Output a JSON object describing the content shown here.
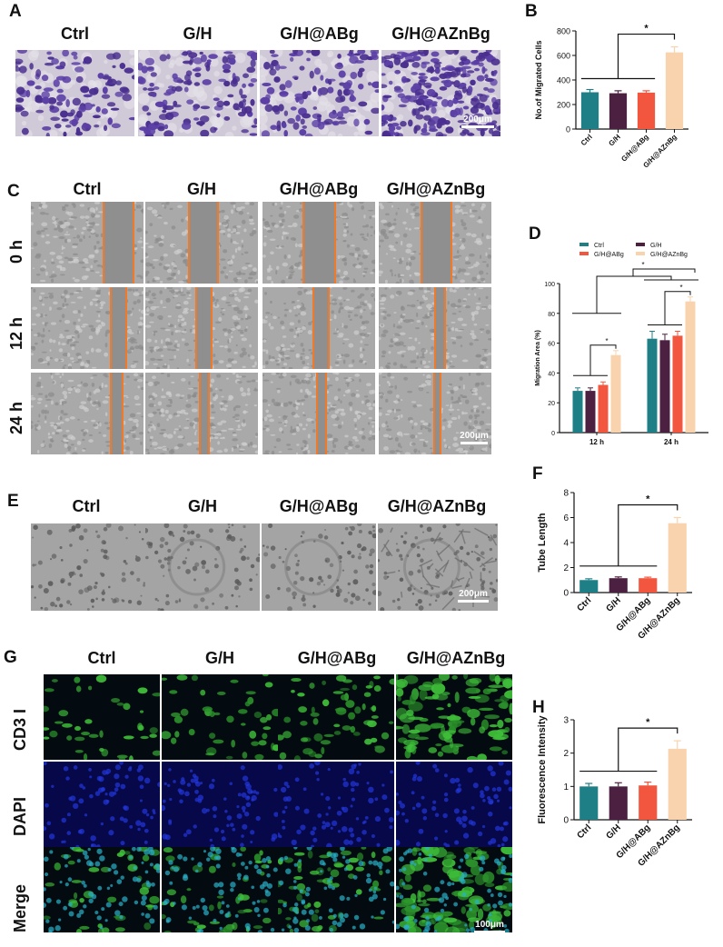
{
  "panels": {
    "A": {
      "letter": "A",
      "columns": [
        "Ctrl",
        "G/H",
        "G/H@ABg",
        "G/H@AZnBg"
      ],
      "scale_label": "200μm"
    },
    "C": {
      "letter": "C",
      "columns": [
        "Ctrl",
        "G/H",
        "G/H@ABg",
        "G/H@AZnBg"
      ],
      "rows": [
        "0 h",
        "12 h",
        "24 h"
      ],
      "scale_label": "200μm"
    },
    "E": {
      "letter": "E",
      "columns": [
        "Ctrl",
        "G/H",
        "G/H@ABg",
        "G/H@AZnBg"
      ],
      "scale_label": "200μm"
    },
    "G": {
      "letter": "G",
      "columns": [
        "Ctrl",
        "G/H",
        "G/H@ABg",
        "G/H@AZnBg"
      ],
      "rows": [
        "CD3 I",
        "DAPI",
        "Merge"
      ],
      "scale_label": "100μm"
    }
  },
  "colors": {
    "teal": "#1e7f86",
    "plum": "#4c2040",
    "coral": "#f2563e",
    "peach": "#f8d3ad",
    "crystal_violet": "#5b3fa6",
    "scratch_line": "#f07a2a"
  },
  "chart_data": [
    {
      "id": "B",
      "letter": "B",
      "type": "bar",
      "categories": [
        "Ctrl",
        "G/H",
        "G/H@ABg",
        "G/H@AZnBg"
      ],
      "values": [
        300,
        292,
        297,
        625
      ],
      "errors": [
        22,
        20,
        15,
        45
      ],
      "ylabel": "No.of Migrated Cells",
      "ylim": [
        0,
        800
      ],
      "yticks": [
        0,
        200,
        400,
        600,
        800
      ],
      "significance": "*"
    },
    {
      "id": "D",
      "letter": "D",
      "type": "bar",
      "categories": [
        "12 h",
        "24 h"
      ],
      "series": [
        {
          "name": "Ctrl",
          "values": [
            28,
            63
          ],
          "errors": [
            2,
            5
          ]
        },
        {
          "name": "G/H",
          "values": [
            28,
            62
          ],
          "errors": [
            2,
            4
          ]
        },
        {
          "name": "G/H@ABg",
          "values": [
            32,
            65
          ],
          "errors": [
            2,
            3
          ]
        },
        {
          "name": "G/H@AZnBg",
          "values": [
            52,
            88
          ],
          "errors": [
            3,
            3
          ]
        }
      ],
      "ylabel": "Migration Area (%)",
      "ylim": [
        0,
        100
      ],
      "yticks": [
        0,
        20,
        40,
        60,
        80,
        100
      ],
      "significance": "*",
      "legend": "top"
    },
    {
      "id": "F",
      "letter": "F",
      "type": "bar",
      "categories": [
        "Ctrl",
        "G/H",
        "G/H@ABg",
        "G/H@AZnBg"
      ],
      "values": [
        1.0,
        1.15,
        1.15,
        5.55
      ],
      "errors": [
        0.1,
        0.1,
        0.08,
        0.45
      ],
      "ylabel": "Tube Length",
      "ylim": [
        0,
        8
      ],
      "yticks": [
        0,
        2,
        4,
        6,
        8
      ],
      "significance": "*"
    },
    {
      "id": "H",
      "letter": "H",
      "type": "bar",
      "categories": [
        "Ctrl",
        "G/H",
        "G/H@ABg",
        "G/H@AZnBg"
      ],
      "values": [
        1.0,
        1.0,
        1.03,
        2.13
      ],
      "errors": [
        0.09,
        0.11,
        0.1,
        0.24
      ],
      "ylabel": "Fluorescence Intensity",
      "ylim": [
        0,
        3
      ],
      "yticks": [
        0,
        1,
        2,
        3
      ],
      "significance": "*"
    }
  ]
}
